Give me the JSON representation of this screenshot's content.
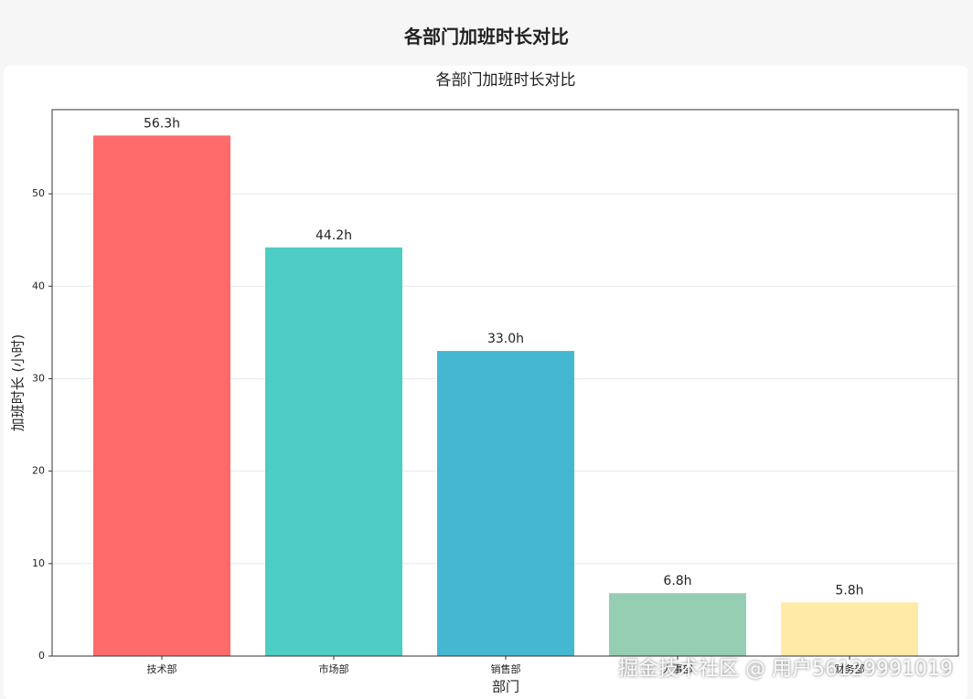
{
  "header": {
    "title": "各部门加班时长对比"
  },
  "watermark": "掘金技术社区 @ 用户56129991019",
  "chart_data": {
    "type": "bar",
    "title": "各部门加班时长对比",
    "xlabel": "部门",
    "ylabel": "加班时长 (小时)",
    "categories": [
      "技术部",
      "市场部",
      "销售部",
      "人事部",
      "财务部"
    ],
    "values": [
      56.3,
      44.2,
      33.0,
      6.8,
      5.8
    ],
    "value_labels": [
      "56.3h",
      "44.2h",
      "33.0h",
      "6.8h",
      "5.8h"
    ],
    "colors": [
      "#ff6b6b",
      "#4ecdc4",
      "#45b7d1",
      "#96ceb4",
      "#ffeaa7"
    ],
    "ylim": [
      0,
      59.1
    ],
    "yticks": [
      0,
      10,
      20,
      30,
      40,
      50
    ],
    "grid": true
  }
}
